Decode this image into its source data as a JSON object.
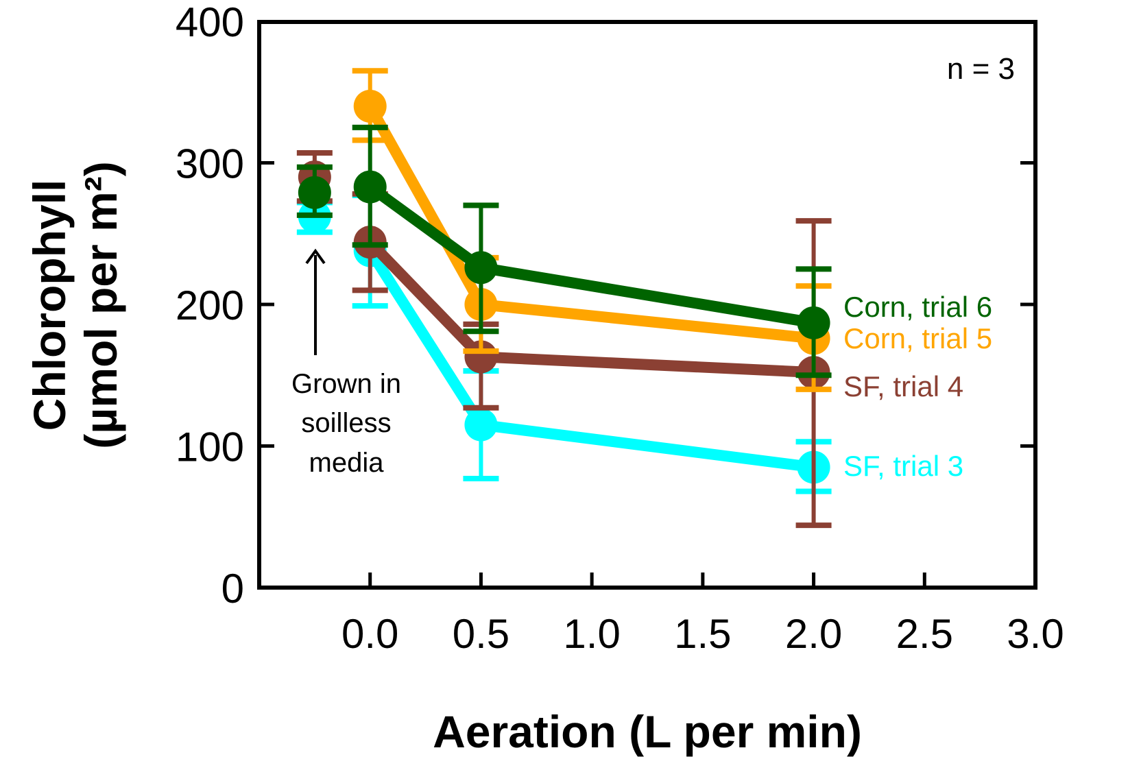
{
  "chart_data": {
    "type": "line",
    "title": "",
    "xlabel": "Aeration (L per min)",
    "ylabel_line1": "Chlorophyll",
    "ylabel_line2": "(µmol per m²)",
    "xlim": [
      -0.5,
      3.0
    ],
    "ylim": [
      0,
      400
    ],
    "xticks": [
      "0.0",
      "0.5",
      "1.0",
      "1.5",
      "2.0",
      "2.5",
      "3.0"
    ],
    "xtick_values": [
      0,
      0.5,
      1.0,
      1.5,
      2.0,
      2.5,
      3.0
    ],
    "yticks": [
      "0",
      "100",
      "200",
      "300",
      "400"
    ],
    "ytick_values": [
      0,
      100,
      200,
      300,
      400
    ],
    "grid": false,
    "annotation_n": "n = 3",
    "soilless_label": [
      "Grown in",
      "soilless",
      "media"
    ],
    "soilless_x": -0.25,
    "series": [
      {
        "name": "SF, trial 3",
        "color": "#00FFFF",
        "soilless": {
          "y": 262,
          "lo": 251,
          "hi": 272
        },
        "x": [
          0,
          0.5,
          2.0
        ],
        "y": [
          238,
          115,
          85
        ],
        "lo": [
          199,
          77,
          68
        ],
        "hi": [
          277,
          153,
          103
        ]
      },
      {
        "name": "SF, trial 4",
        "color": "#8B4033",
        "soilless": {
          "y": 290,
          "lo": 273,
          "hi": 307
        },
        "x": [
          0,
          0.5,
          2.0
        ],
        "y": [
          244,
          163,
          152
        ],
        "lo": [
          210,
          127,
          44
        ],
        "hi": [
          278,
          186,
          259
        ]
      },
      {
        "name": "Corn, trial 5",
        "color": "#FFA500",
        "soilless": null,
        "x": [
          0,
          0.5,
          2.0
        ],
        "y": [
          340,
          200,
          176
        ],
        "lo": [
          316,
          167,
          140
        ],
        "hi": [
          365,
          233,
          213
        ]
      },
      {
        "name": "Corn, trial 6",
        "color": "#006400",
        "soilless": {
          "y": 279,
          "lo": 263,
          "hi": 297
        },
        "x": [
          0,
          0.5,
          2.0
        ],
        "y": [
          283,
          226,
          187
        ],
        "lo": [
          242,
          181,
          150
        ],
        "hi": [
          325,
          270,
          225
        ]
      }
    ],
    "legend_placement": "right, inline next to series ends"
  }
}
